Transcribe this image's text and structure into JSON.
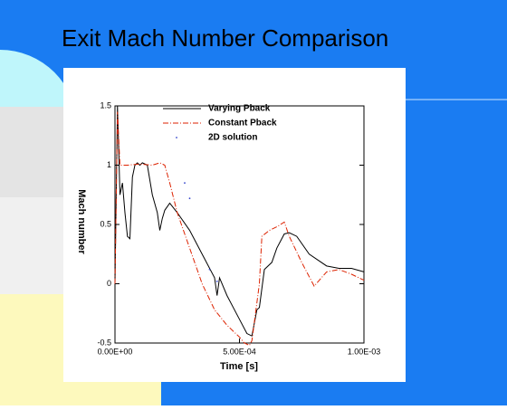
{
  "chart_data": {
    "type": "line",
    "title": "Exit Mach Number Comparison",
    "xlabel": "Time [s]",
    "ylabel": "Mach number",
    "xlim": [
      0,
      0.001
    ],
    "ylim": [
      -0.5,
      1.5
    ],
    "xticks": [
      {
        "value": 0,
        "label": "0.00E+00"
      },
      {
        "value": 0.0005,
        "label": "5.00E-04"
      },
      {
        "value": 0.001,
        "label": "1.00E-03"
      }
    ],
    "yticks": [
      -0.5,
      0,
      0.5,
      1,
      1.5
    ],
    "series": [
      {
        "name": "Varying Pback",
        "color": "#000000",
        "style": "solid",
        "x": [
          0,
          1e-05,
          2e-05,
          3e-05,
          4e-05,
          5e-05,
          6e-05,
          7e-05,
          8e-05,
          9e-05,
          0.0001,
          0.00011,
          0.00013,
          0.00015,
          0.00017,
          0.00018,
          0.00019,
          0.0002,
          0.00022,
          0.00025,
          0.0003,
          0.00035,
          0.0004,
          0.00041,
          0.00042,
          0.00045,
          0.0005,
          0.00053,
          0.00055,
          0.00057,
          0.00058,
          0.0006,
          0.00063,
          0.00065,
          0.00068,
          0.0007,
          0.00073,
          0.00078,
          0.00085,
          0.0009,
          0.00095,
          0.001
        ],
        "values": [
          0,
          1.5,
          0.75,
          0.85,
          0.6,
          0.4,
          0.38,
          0.9,
          1.0,
          1.02,
          1.0,
          1.02,
          1.0,
          0.75,
          0.6,
          0.45,
          0.55,
          0.62,
          0.68,
          0.6,
          0.45,
          0.25,
          0.05,
          -0.1,
          0.05,
          -0.1,
          -0.3,
          -0.42,
          -0.44,
          -0.22,
          -0.2,
          0.12,
          0.18,
          0.3,
          0.42,
          0.43,
          0.4,
          0.25,
          0.15,
          0.13,
          0.13,
          0.1
        ]
      },
      {
        "name": "Constant Pback",
        "color": "#dd2200",
        "style": "dashdot",
        "x": [
          0,
          1e-05,
          2e-05,
          5e-05,
          0.0001,
          0.00015,
          0.00018,
          0.0002,
          0.00022,
          0.00025,
          0.0003,
          0.00035,
          0.0004,
          0.00045,
          0.0005,
          0.00052,
          0.00054,
          0.00055,
          0.00058,
          0.00059,
          0.00062,
          0.00065,
          0.00068,
          0.0007,
          0.00075,
          0.0008,
          0.00085,
          0.0009,
          0.00095,
          0.001
        ],
        "values": [
          0,
          1.45,
          1.0,
          1.0,
          1.01,
          1.0,
          1.02,
          1.0,
          0.85,
          0.6,
          0.3,
          0.0,
          -0.22,
          -0.35,
          -0.45,
          -0.5,
          -0.52,
          -0.48,
          0.0,
          0.4,
          0.45,
          0.48,
          0.52,
          0.4,
          0.18,
          -0.02,
          0.1,
          0.12,
          0.08,
          0.03
        ]
      },
      {
        "name": "2D solution",
        "color": "#3344cc",
        "style": "dots",
        "x": [
          0.00028,
          0.0003,
          0.00038,
          0.00041
        ],
        "values": [
          0.85,
          0.72,
          0.12,
          0.02
        ]
      }
    ]
  }
}
